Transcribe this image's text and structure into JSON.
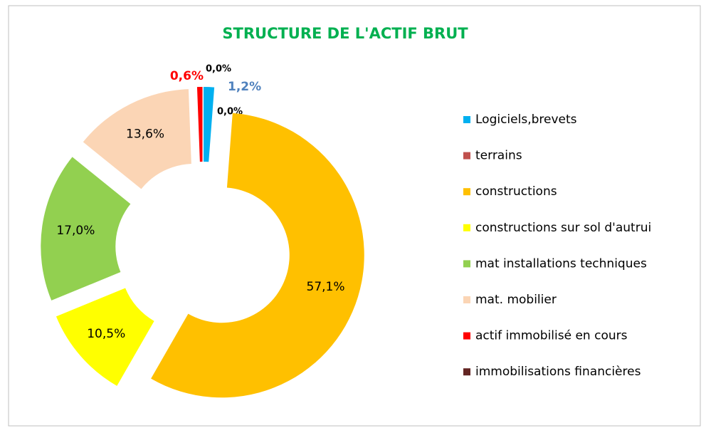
{
  "chart_data": {
    "type": "donut",
    "title": "STRUCTURE DE L'ACTIF BRUT",
    "categories": [
      "Logiciels,brevets",
      "terrains",
      "constructions",
      "constructions sur sol d'autrui",
      "mat installations techniques",
      "mat. mobilier",
      "actif immobilisé en cours",
      "immobilisations financières"
    ],
    "values": [
      1.2,
      0.0,
      57.1,
      10.5,
      17.0,
      13.6,
      0.6,
      0.0
    ],
    "value_labels": [
      "1,2%",
      "0,0%",
      "57,1%",
      "10,5%",
      "17,0%",
      "13,6%",
      "0,6%",
      "0,0%"
    ],
    "colors": [
      "#00b0f0",
      "#c0504d",
      "#ffc000",
      "#ffff00",
      "#92d050",
      "#fbd5b5",
      "#ff0000",
      "#632523"
    ],
    "value_label_colors": [
      "#4f81bd",
      "#000000",
      "#000000",
      "#000000",
      "#000000",
      "#000000",
      "#ff0000",
      "#000000"
    ],
    "legend": "right"
  }
}
